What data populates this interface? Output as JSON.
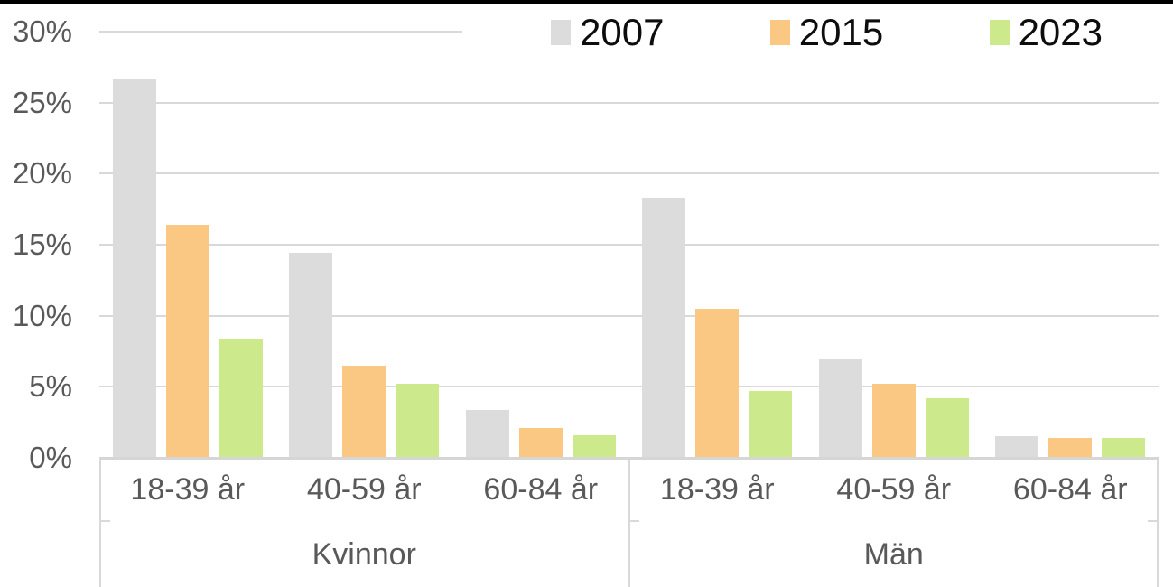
{
  "colors": {
    "background": "#ffffff",
    "top_border": "#000000",
    "gridline": "#d9d9d9",
    "axis_line": "#d6d6d6",
    "tick_text": "#595959",
    "legend_text": "#0d0d0d"
  },
  "legend": {
    "position": "top",
    "items": [
      {
        "label": "2007",
        "color": "#dcdcdc"
      },
      {
        "label": "2015",
        "color": "#fbc884"
      },
      {
        "label": "2023",
        "color": "#cce98c"
      }
    ]
  },
  "y_axis": {
    "tick_labels": [
      "30%",
      "25%",
      "20%",
      "15%",
      "10%",
      "5%",
      "0%"
    ],
    "tick_values": [
      30,
      25,
      20,
      15,
      10,
      5,
      0
    ]
  },
  "chart_data": {
    "type": "bar",
    "title": "",
    "ylim": [
      0,
      30
    ],
    "y_unit": "%",
    "grid": true,
    "legend_position": "top",
    "series_names": [
      "2007",
      "2015",
      "2023"
    ],
    "groups": [
      {
        "label": "Kvinnor",
        "categories": [
          "18-39 år",
          "40-59 år",
          "60-84 år"
        ],
        "series": [
          {
            "name": "2007",
            "values": [
              26.7,
              14.4,
              3.4
            ]
          },
          {
            "name": "2015",
            "values": [
              16.4,
              6.5,
              2.1
            ]
          },
          {
            "name": "2023",
            "values": [
              8.4,
              5.2,
              1.6
            ]
          }
        ]
      },
      {
        "label": "Män",
        "categories": [
          "18-39 år",
          "40-59 år",
          "60-84 år"
        ],
        "series": [
          {
            "name": "2007",
            "values": [
              18.3,
              7.0,
              1.5
            ]
          },
          {
            "name": "2015",
            "values": [
              10.5,
              5.2,
              1.4
            ]
          },
          {
            "name": "2023",
            "values": [
              4.7,
              4.2,
              1.4
            ]
          }
        ]
      }
    ]
  }
}
